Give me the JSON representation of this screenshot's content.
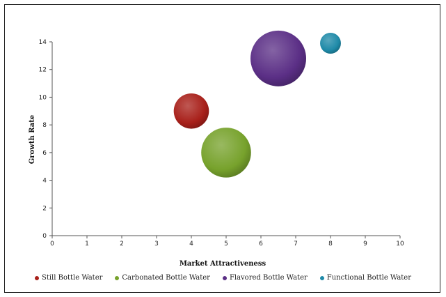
{
  "chart_data": {
    "type": "bubble",
    "title": "",
    "xlabel": "Market Attractiveness",
    "ylabel": "Growth Rate",
    "xlim": [
      0,
      10
    ],
    "ylim": [
      0,
      14
    ],
    "xticks": [
      "0",
      "1",
      "2",
      "3",
      "4",
      "5",
      "6",
      "7",
      "8",
      "9",
      "10"
    ],
    "yticks": [
      "0",
      "2",
      "4",
      "6",
      "8",
      "10",
      "12",
      "14"
    ],
    "grid": false,
    "legend_position": "bottom",
    "series": [
      {
        "name": "Still Bottle Water",
        "x": 4,
        "y": 9,
        "size": 2,
        "color": "#a8201a"
      },
      {
        "name": "Carbonated Bottle Water",
        "x": 5,
        "y": 6,
        "size": 4,
        "color": "#77a22c"
      },
      {
        "name": "Flavored Bottle Water",
        "x": 6.5,
        "y": 12.8,
        "size": 5,
        "color": "#5b2f86"
      },
      {
        "name": "Functional Bottle Water",
        "x": 8,
        "y": 13.9,
        "size": 0.7,
        "color": "#1f8aa8"
      }
    ]
  }
}
